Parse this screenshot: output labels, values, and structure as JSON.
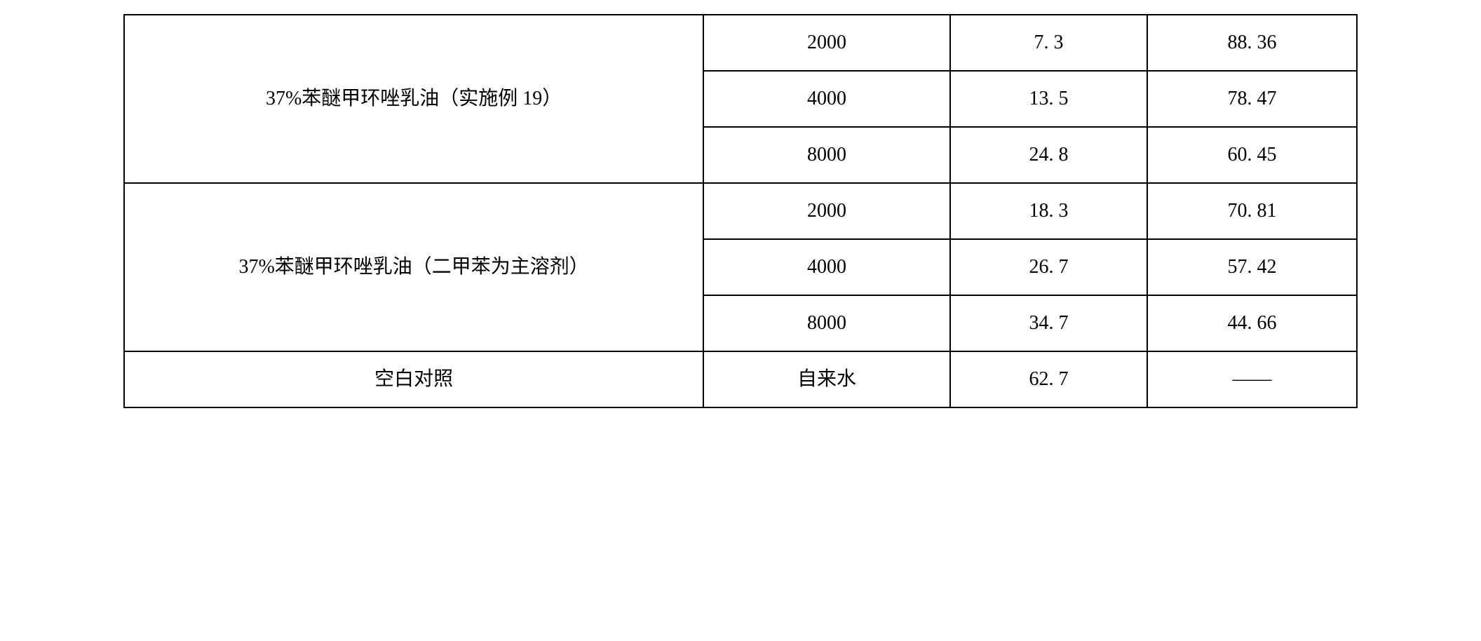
{
  "table": {
    "columns": {
      "col1_width_pct": 47,
      "col2_width_pct": 20,
      "col3_width_pct": 16,
      "col4_width_pct": 17
    },
    "border_color": "#000000",
    "background_color": "#ffffff",
    "font_size": 28,
    "font_family": "SimSun",
    "rows": [
      {
        "label": "37%苯醚甲环唑乳油（实施例 19）",
        "rowspan": 3,
        "cells": [
          {
            "c2": "2000",
            "c3": "7. 3",
            "c4": "88. 36"
          },
          {
            "c2": "4000",
            "c3": "13. 5",
            "c4": "78. 47"
          },
          {
            "c2": "8000",
            "c3": "24. 8",
            "c4": "60. 45"
          }
        ]
      },
      {
        "label": "37%苯醚甲环唑乳油（二甲苯为主溶剂）",
        "rowspan": 3,
        "cells": [
          {
            "c2": "2000",
            "c3": "18. 3",
            "c4": "70. 81"
          },
          {
            "c2": "4000",
            "c3": "26. 7",
            "c4": "57. 42"
          },
          {
            "c2": "8000",
            "c3": "34. 7",
            "c4": "44. 66"
          }
        ]
      },
      {
        "label": "空白对照",
        "rowspan": 1,
        "cells": [
          {
            "c2": "自来水",
            "c3": "62. 7",
            "c4": "——"
          }
        ]
      }
    ]
  }
}
